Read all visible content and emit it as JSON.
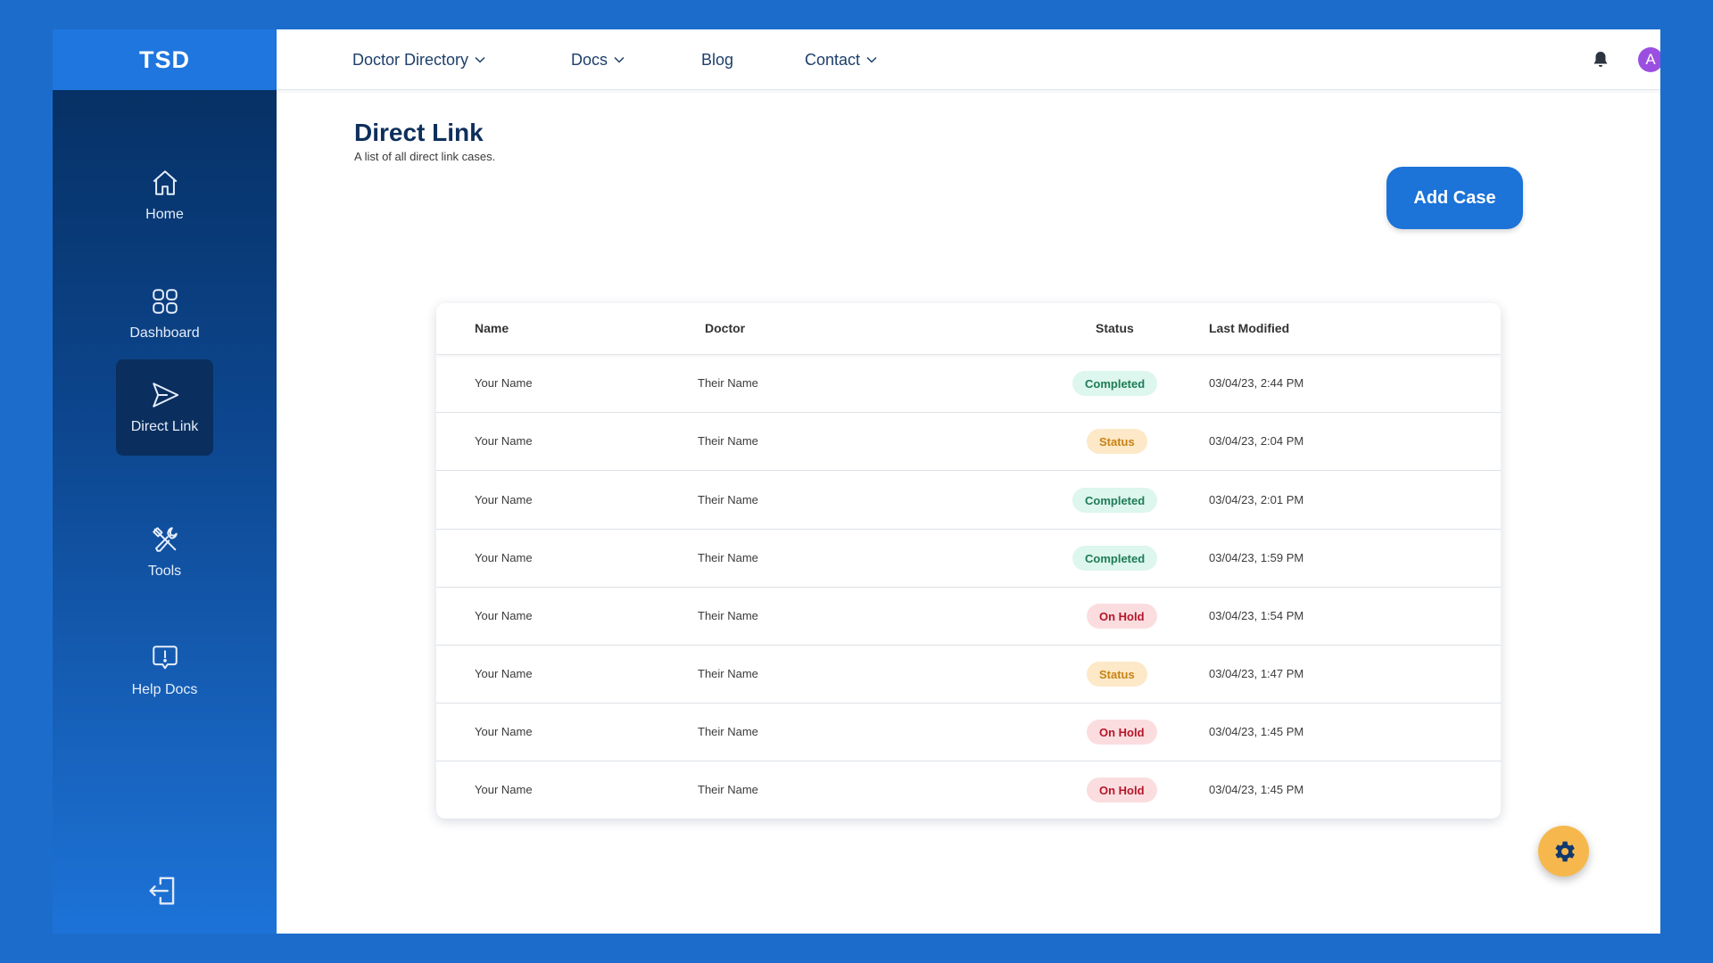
{
  "brand": "TSD",
  "sidebar": {
    "items": [
      {
        "label": "Home",
        "icon": "home-icon"
      },
      {
        "label": "Dashboard",
        "icon": "grid-icon"
      },
      {
        "label": "Direct Link",
        "icon": "send-icon"
      },
      {
        "label": "Tools",
        "icon": "tools-icon"
      },
      {
        "label": "Help Docs",
        "icon": "help-icon"
      }
    ],
    "active": "Direct Link"
  },
  "topnav": {
    "items": [
      {
        "label": "Doctor Directory",
        "dropdown": true
      },
      {
        "label": "Docs",
        "dropdown": true
      },
      {
        "label": "Blog",
        "dropdown": false
      },
      {
        "label": "Contact",
        "dropdown": true
      }
    ],
    "avatar_initial": "A"
  },
  "page": {
    "title": "Direct Link",
    "subtitle": "A list of all direct link cases.",
    "add_button": "Add Case"
  },
  "table": {
    "headers": [
      "Name",
      "Doctor",
      "Status",
      "Last Modified"
    ],
    "rows": [
      {
        "name": "Your Name",
        "doctor": "Their Name",
        "status": "Completed",
        "modified": "03/04/23, 2:44 PM"
      },
      {
        "name": "Your Name",
        "doctor": "Their Name",
        "status": "Status",
        "modified": "03/04/23, 2:04 PM"
      },
      {
        "name": "Your Name",
        "doctor": "Their Name",
        "status": "Completed",
        "modified": "03/04/23, 2:01 PM"
      },
      {
        "name": "Your Name",
        "doctor": "Their Name",
        "status": "Completed",
        "modified": "03/04/23, 1:59 PM"
      },
      {
        "name": "Your Name",
        "doctor": "Their Name",
        "status": "On Hold",
        "modified": "03/04/23, 1:54 PM"
      },
      {
        "name": "Your Name",
        "doctor": "Their Name",
        "status": "Status",
        "modified": "03/04/23, 1:47 PM"
      },
      {
        "name": "Your Name",
        "doctor": "Their Name",
        "status": "On Hold",
        "modified": "03/04/23, 1:45 PM"
      },
      {
        "name": "Your Name",
        "doctor": "Their Name",
        "status": "On Hold",
        "modified": "03/04/23, 1:45 PM"
      }
    ]
  },
  "colors": {
    "background": "#1c6ccc",
    "brand_bar": "#1f76de",
    "accent": "#1c73d8",
    "completed": "#1d7c56",
    "status": "#c78314",
    "on_hold": "#b5162a",
    "gear_button": "#f6b84d",
    "avatar": "#9b4fe0"
  }
}
